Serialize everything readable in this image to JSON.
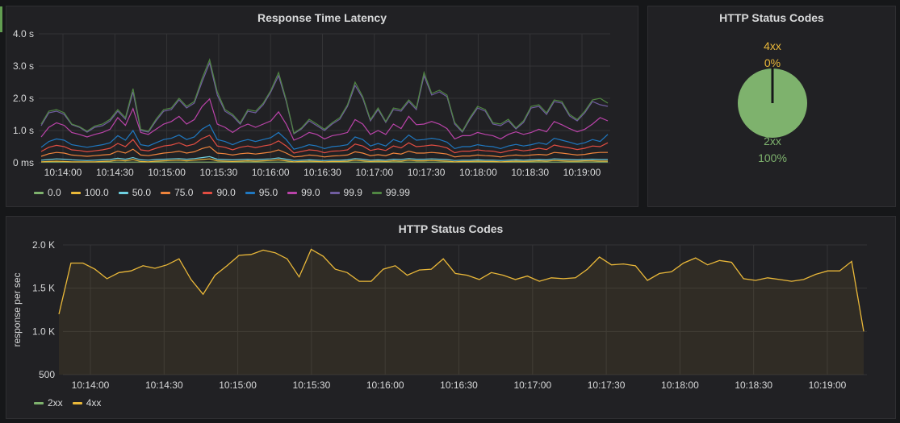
{
  "latency_panel": {
    "title": "Response Time Latency",
    "chart_data": {
      "type": "line",
      "title": "Response Time Latency",
      "x_labels": [
        "10:14:00",
        "10:14:30",
        "10:15:00",
        "10:15:30",
        "10:16:00",
        "10:16:30",
        "10:17:00",
        "10:17:30",
        "10:18:00",
        "10:18:30",
        "10:19:00"
      ],
      "y_ticks": [
        "0 ms",
        "1.0 s",
        "2.0 s",
        "3.0 s",
        "4.0 s"
      ],
      "ylim": [
        0,
        4.0
      ],
      "series": [
        {
          "name": "0.0",
          "color": "#7eb26d",
          "values": [
            0.02,
            0.02,
            0.02,
            0.02,
            0.02,
            0.02,
            0.02,
            0.02,
            0.02,
            0.02,
            0.02,
            0.02,
            0.02,
            0.02,
            0.02,
            0.02,
            0.02,
            0.02,
            0.02,
            0.02,
            0.02,
            0.02,
            0.02,
            0.02,
            0.02,
            0.02,
            0.02,
            0.02,
            0.02,
            0.02,
            0.02,
            0.02,
            0.02,
            0.02,
            0.02,
            0.02,
            0.02,
            0.02,
            0.02,
            0.02,
            0.02,
            0.02,
            0.02,
            0.02,
            0.02,
            0.02,
            0.02,
            0.02,
            0.02,
            0.02,
            0.02,
            0.02,
            0.02,
            0.02,
            0.02,
            0.02,
            0.02,
            0.02,
            0.02,
            0.02,
            0.02,
            0.02,
            0.02,
            0.02,
            0.02,
            0.02,
            0.02,
            0.02,
            0.02,
            0.02,
            0.02,
            0.02,
            0.02,
            0.02,
            0.02
          ]
        },
        {
          "name": "100.0",
          "color": "#eab839",
          "values": [
            0.03,
            0.04,
            0.05,
            0.04,
            0.03,
            0.03,
            0.03,
            0.03,
            0.04,
            0.05,
            0.08,
            0.06,
            0.1,
            0.04,
            0.03,
            0.05,
            0.06,
            0.07,
            0.08,
            0.06,
            0.08,
            0.1,
            0.12,
            0.06,
            0.05,
            0.04,
            0.05,
            0.06,
            0.05,
            0.06,
            0.07,
            0.09,
            0.06,
            0.03,
            0.04,
            0.05,
            0.04,
            0.03,
            0.04,
            0.04,
            0.05,
            0.08,
            0.06,
            0.04,
            0.05,
            0.04,
            0.06,
            0.05,
            0.08,
            0.06,
            0.06,
            0.07,
            0.06,
            0.05,
            0.03,
            0.04,
            0.04,
            0.05,
            0.04,
            0.04,
            0.03,
            0.04,
            0.05,
            0.04,
            0.05,
            0.06,
            0.05,
            0.07,
            0.06,
            0.05,
            0.05,
            0.06,
            0.06,
            0.05,
            0.05
          ]
        },
        {
          "name": "50.0",
          "color": "#6ed0e0",
          "values": [
            0.08,
            0.1,
            0.12,
            0.11,
            0.09,
            0.08,
            0.07,
            0.08,
            0.09,
            0.1,
            0.14,
            0.11,
            0.16,
            0.09,
            0.08,
            0.1,
            0.11,
            0.12,
            0.13,
            0.11,
            0.13,
            0.16,
            0.19,
            0.11,
            0.1,
            0.09,
            0.1,
            0.11,
            0.1,
            0.11,
            0.12,
            0.15,
            0.11,
            0.07,
            0.08,
            0.09,
            0.08,
            0.07,
            0.08,
            0.08,
            0.09,
            0.13,
            0.11,
            0.08,
            0.09,
            0.08,
            0.11,
            0.1,
            0.13,
            0.11,
            0.11,
            0.12,
            0.11,
            0.1,
            0.07,
            0.08,
            0.08,
            0.09,
            0.08,
            0.08,
            0.07,
            0.08,
            0.09,
            0.08,
            0.09,
            0.1,
            0.09,
            0.12,
            0.11,
            0.1,
            0.09,
            0.1,
            0.11,
            0.1,
            0.1
          ]
        },
        {
          "name": "75.0",
          "color": "#ef843c",
          "values": [
            0.2,
            0.28,
            0.32,
            0.3,
            0.24,
            0.22,
            0.2,
            0.22,
            0.24,
            0.26,
            0.36,
            0.3,
            0.42,
            0.24,
            0.22,
            0.26,
            0.3,
            0.32,
            0.36,
            0.3,
            0.34,
            0.44,
            0.5,
            0.3,
            0.28,
            0.24,
            0.28,
            0.3,
            0.27,
            0.3,
            0.33,
            0.4,
            0.3,
            0.18,
            0.2,
            0.24,
            0.22,
            0.18,
            0.21,
            0.22,
            0.24,
            0.34,
            0.3,
            0.22,
            0.25,
            0.22,
            0.3,
            0.27,
            0.36,
            0.3,
            0.3,
            0.32,
            0.3,
            0.27,
            0.18,
            0.21,
            0.21,
            0.24,
            0.22,
            0.21,
            0.18,
            0.22,
            0.24,
            0.22,
            0.24,
            0.26,
            0.24,
            0.32,
            0.3,
            0.27,
            0.24,
            0.26,
            0.3,
            0.32,
            0.32
          ]
        },
        {
          "name": "90.0",
          "color": "#e24d42",
          "values": [
            0.35,
            0.48,
            0.54,
            0.5,
            0.4,
            0.38,
            0.34,
            0.37,
            0.4,
            0.45,
            0.6,
            0.5,
            0.72,
            0.4,
            0.37,
            0.45,
            0.52,
            0.55,
            0.62,
            0.52,
            0.58,
            0.75,
            0.85,
            0.52,
            0.48,
            0.4,
            0.48,
            0.52,
            0.47,
            0.52,
            0.56,
            0.68,
            0.52,
            0.3,
            0.35,
            0.4,
            0.38,
            0.31,
            0.36,
            0.37,
            0.4,
            0.58,
            0.52,
            0.38,
            0.43,
            0.38,
            0.52,
            0.46,
            0.62,
            0.5,
            0.52,
            0.55,
            0.52,
            0.46,
            0.31,
            0.36,
            0.36,
            0.4,
            0.37,
            0.36,
            0.31,
            0.37,
            0.41,
            0.37,
            0.4,
            0.45,
            0.41,
            0.55,
            0.5,
            0.46,
            0.41,
            0.45,
            0.52,
            0.5,
            0.62
          ]
        },
        {
          "name": "95.0",
          "color": "#1f78c1",
          "values": [
            0.48,
            0.66,
            0.74,
            0.7,
            0.56,
            0.52,
            0.48,
            0.52,
            0.56,
            0.62,
            0.84,
            0.7,
            1.0,
            0.56,
            0.52,
            0.62,
            0.72,
            0.76,
            0.86,
            0.72,
            0.8,
            1.04,
            1.18,
            0.72,
            0.66,
            0.56,
            0.66,
            0.72,
            0.66,
            0.72,
            0.78,
            0.94,
            0.72,
            0.42,
            0.48,
            0.56,
            0.52,
            0.44,
            0.5,
            0.52,
            0.56,
            0.8,
            0.72,
            0.52,
            0.6,
            0.52,
            0.72,
            0.64,
            0.86,
            0.7,
            0.72,
            0.76,
            0.72,
            0.64,
            0.44,
            0.5,
            0.5,
            0.56,
            0.52,
            0.5,
            0.44,
            0.52,
            0.57,
            0.52,
            0.56,
            0.62,
            0.57,
            0.76,
            0.7,
            0.64,
            0.57,
            0.62,
            0.72,
            0.66,
            0.88
          ]
        },
        {
          "name": "99.0",
          "color": "#ba43a9",
          "values": [
            0.8,
            1.1,
            1.24,
            1.16,
            0.94,
            0.88,
            0.8,
            0.88,
            0.94,
            1.04,
            1.4,
            1.16,
            1.68,
            0.94,
            0.88,
            1.04,
            1.2,
            1.28,
            1.44,
            1.2,
            1.34,
            1.74,
            1.98,
            1.2,
            1.1,
            0.94,
            1.1,
            1.2,
            1.1,
            1.2,
            1.3,
            1.58,
            1.2,
            0.7,
            0.8,
            0.94,
            0.88,
            0.74,
            0.84,
            0.88,
            0.94,
            1.34,
            1.2,
            0.88,
            1.0,
            0.88,
            1.2,
            1.06,
            1.44,
            1.18,
            1.2,
            1.28,
            1.2,
            1.06,
            0.74,
            0.84,
            0.84,
            0.94,
            0.88,
            0.84,
            0.74,
            0.88,
            0.96,
            0.88,
            0.94,
            1.04,
            0.96,
            1.28,
            1.18,
            1.06,
            0.96,
            1.04,
            1.2,
            1.4,
            1.3
          ]
        },
        {
          "name": "99.9",
          "color": "#705da0",
          "values": [
            1.15,
            1.55,
            1.6,
            1.5,
            1.18,
            1.1,
            0.95,
            1.1,
            1.15,
            1.3,
            1.6,
            1.35,
            2.2,
            1.0,
            0.95,
            1.3,
            1.6,
            1.65,
            1.95,
            1.7,
            1.85,
            2.5,
            3.1,
            2.1,
            1.6,
            1.45,
            1.2,
            1.6,
            1.55,
            1.8,
            2.2,
            2.7,
            1.9,
            0.9,
            1.05,
            1.3,
            1.15,
            1.0,
            1.2,
            1.35,
            1.75,
            2.4,
            2.0,
            1.3,
            1.65,
            1.25,
            1.65,
            1.6,
            1.9,
            1.65,
            2.7,
            2.1,
            2.2,
            2.05,
            1.2,
            0.95,
            1.35,
            1.7,
            1.6,
            1.2,
            1.15,
            1.3,
            1.05,
            1.25,
            1.7,
            1.75,
            1.5,
            1.9,
            1.85,
            1.45,
            1.3,
            1.55,
            1.9,
            1.8,
            1.75
          ]
        },
        {
          "name": "99.99",
          "color": "#508642",
          "values": [
            1.2,
            1.6,
            1.65,
            1.55,
            1.2,
            1.12,
            0.98,
            1.14,
            1.2,
            1.35,
            1.65,
            1.4,
            2.3,
            1.04,
            0.98,
            1.35,
            1.65,
            1.7,
            2.0,
            1.75,
            1.9,
            2.6,
            3.2,
            2.2,
            1.65,
            1.5,
            1.24,
            1.65,
            1.6,
            1.85,
            2.25,
            2.8,
            1.95,
            0.92,
            1.08,
            1.35,
            1.2,
            1.04,
            1.24,
            1.4,
            1.8,
            2.5,
            2.05,
            1.34,
            1.7,
            1.28,
            1.7,
            1.65,
            1.95,
            1.7,
            2.8,
            2.15,
            2.25,
            2.1,
            1.25,
            0.98,
            1.4,
            1.75,
            1.65,
            1.24,
            1.2,
            1.35,
            1.08,
            1.3,
            1.75,
            1.8,
            1.55,
            1.95,
            1.9,
            1.5,
            1.34,
            1.6,
            1.95,
            2.0,
            1.85
          ]
        }
      ]
    }
  },
  "status_pie_panel": {
    "title": "HTTP Status Codes",
    "chart_data": {
      "type": "pie",
      "slices": [
        {
          "name": "2xx",
          "label": "2xx",
          "percent_label": "100%",
          "value": 100,
          "color": "#7eb26d"
        },
        {
          "name": "4xx",
          "label": "4xx",
          "percent_label": "0%",
          "value": 0,
          "color": "#eab839"
        }
      ]
    }
  },
  "rate_panel": {
    "title": "HTTP Status Codes",
    "ylabel": "response per sec",
    "chart_data": {
      "type": "area",
      "title": "HTTP Status Codes",
      "ylabel": "response per sec",
      "x_labels": [
        "10:14:00",
        "10:14:30",
        "10:15:00",
        "10:15:30",
        "10:16:00",
        "10:16:30",
        "10:17:00",
        "10:17:30",
        "10:18:00",
        "10:18:30",
        "10:19:00"
      ],
      "y_ticks": [
        "500",
        "1.0 K",
        "1.5 K",
        "2.0 K"
      ],
      "ylim": [
        500,
        2000
      ],
      "series": [
        {
          "name": "2xx",
          "color": "#7eb26d",
          "values": []
        },
        {
          "name": "4xx",
          "color": "#eab839",
          "values": [
            1200,
            1790,
            1790,
            1720,
            1610,
            1680,
            1700,
            1760,
            1730,
            1770,
            1840,
            1600,
            1430,
            1650,
            1760,
            1880,
            1890,
            1940,
            1910,
            1840,
            1630,
            1950,
            1870,
            1720,
            1680,
            1580,
            1580,
            1720,
            1760,
            1650,
            1710,
            1720,
            1840,
            1670,
            1650,
            1600,
            1680,
            1650,
            1600,
            1640,
            1580,
            1620,
            1610,
            1620,
            1720,
            1860,
            1770,
            1780,
            1760,
            1590,
            1670,
            1690,
            1790,
            1850,
            1770,
            1820,
            1800,
            1610,
            1590,
            1620,
            1600,
            1580,
            1600,
            1660,
            1700,
            1700,
            1810,
            1000
          ]
        }
      ]
    }
  }
}
